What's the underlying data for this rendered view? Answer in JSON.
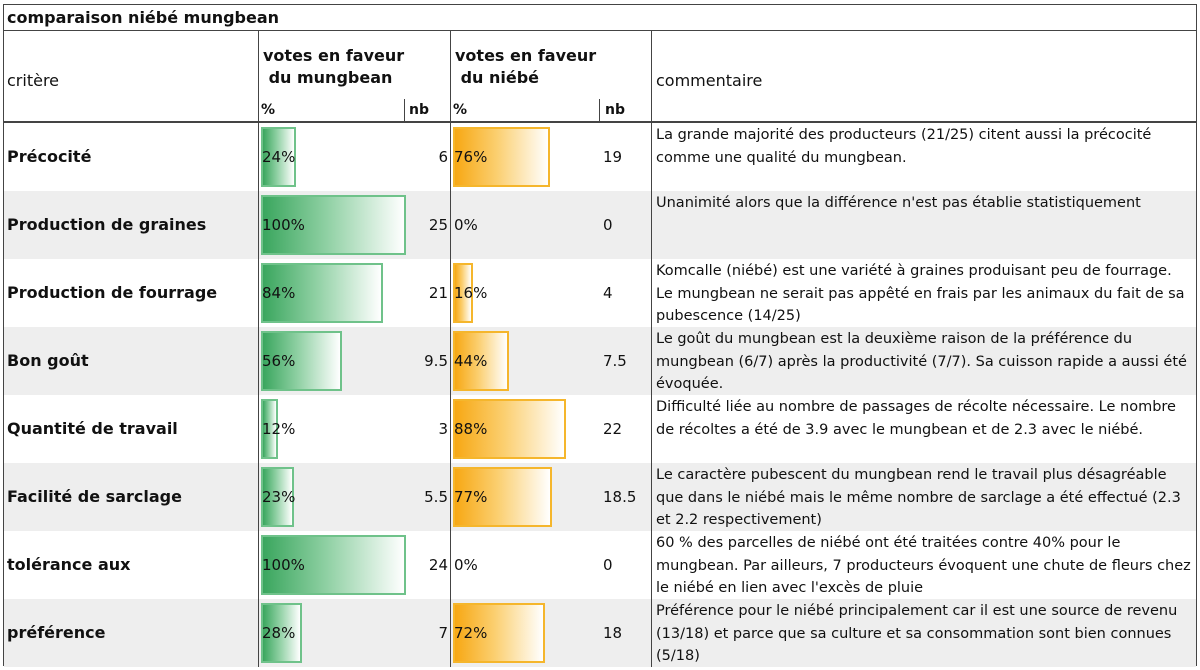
{
  "title": "comparaison niébé mungbean",
  "header": {
    "critere": "critère",
    "mungbean_label": "votes en faveur\n du mungbean",
    "niebe_label": "votes en faveur\n du niébé",
    "pct": "%",
    "nb": "nb",
    "commentaire": "commentaire"
  },
  "colors": {
    "mungbean": "#3aa65e",
    "niebe": "#f7a814"
  },
  "rows": [
    {
      "critere": "Précocité",
      "m_pct": "24%",
      "m_val": 0.24,
      "m_nb": "6",
      "n_pct": "76%",
      "n_val": 0.76,
      "n_nb": "19",
      "comment": "La grande majorité des producteurs (21/25) citent aussi  la précocité comme une qualité du mungbean."
    },
    {
      "critere": "Production de graines",
      "m_pct": "100%",
      "m_val": 1.0,
      "m_nb": "25",
      "n_pct": "0%",
      "n_val": 0.0,
      "n_nb": "0",
      "comment": "Unanimité alors que la différence n'est pas établie statistiquement"
    },
    {
      "critere": "Production de fourrage",
      "m_pct": "84%",
      "m_val": 0.84,
      "m_nb": "21",
      "n_pct": "16%",
      "n_val": 0.16,
      "n_nb": "4",
      "comment": "Komcalle (niébé) est une variété à graines produisant peu de fourrage. Le mungbean ne serait pas appêté en frais par les animaux  du fait de sa pubescence (14/25)"
    },
    {
      "critere": "Bon goût",
      "m_pct": "56%",
      "m_val": 0.56,
      "m_nb": "9.5",
      "n_pct": "44%",
      "n_val": 0.44,
      "n_nb": "7.5",
      "comment": "Le goût du mungbean est la deuxième raison de la préférence du mungbean (6/7)  après la productivité (7/7). Sa cuisson rapide a aussi été évoquée."
    },
    {
      "critere": "Quantité de travail",
      "m_pct": "12%",
      "m_val": 0.12,
      "m_nb": "3",
      "n_pct": "88%",
      "n_val": 0.88,
      "n_nb": "22",
      "comment": "Difficulté liée au nombre de passages de récolte nécessaire. Le nombre de récoltes a été de 3.9 avec le mungbean et de 2.3 avec le niébé."
    },
    {
      "critere": "Facilité de sarclage",
      "m_pct": "23%",
      "m_val": 0.23,
      "m_nb": "5.5",
      "n_pct": "77%",
      "n_val": 0.77,
      "n_nb": "18.5",
      "comment": "Le caractère pubescent du mungbean rend le travail plus désagréable que dans le niébé mais le même nombre de sarclage a été effectué (2.3 et 2.2 respectivement)"
    },
    {
      "critere": "tolérance aux bioagresseurs",
      "m_pct": "100%",
      "m_val": 1.0,
      "m_nb": "24",
      "n_pct": "0%",
      "n_val": 0.0,
      "n_nb": "0",
      "comment": "60 % des parcelles de niébé ont été traitées contre 40% pour le mungbean. Par ailleurs, 7 producteurs évoquent une chute de fleurs chez le niébé en lien avec l'excès de pluie"
    },
    {
      "critere": "préférence",
      "m_pct": "28%",
      "m_val": 0.28,
      "m_nb": "7",
      "n_pct": "72%",
      "n_val": 0.72,
      "n_nb": "18",
      "comment": "Préférence pour le niébé principalement car il est une source de revenu (13/18) et parce que sa culture et sa consommation sont bien connues (5/18)"
    }
  ]
}
